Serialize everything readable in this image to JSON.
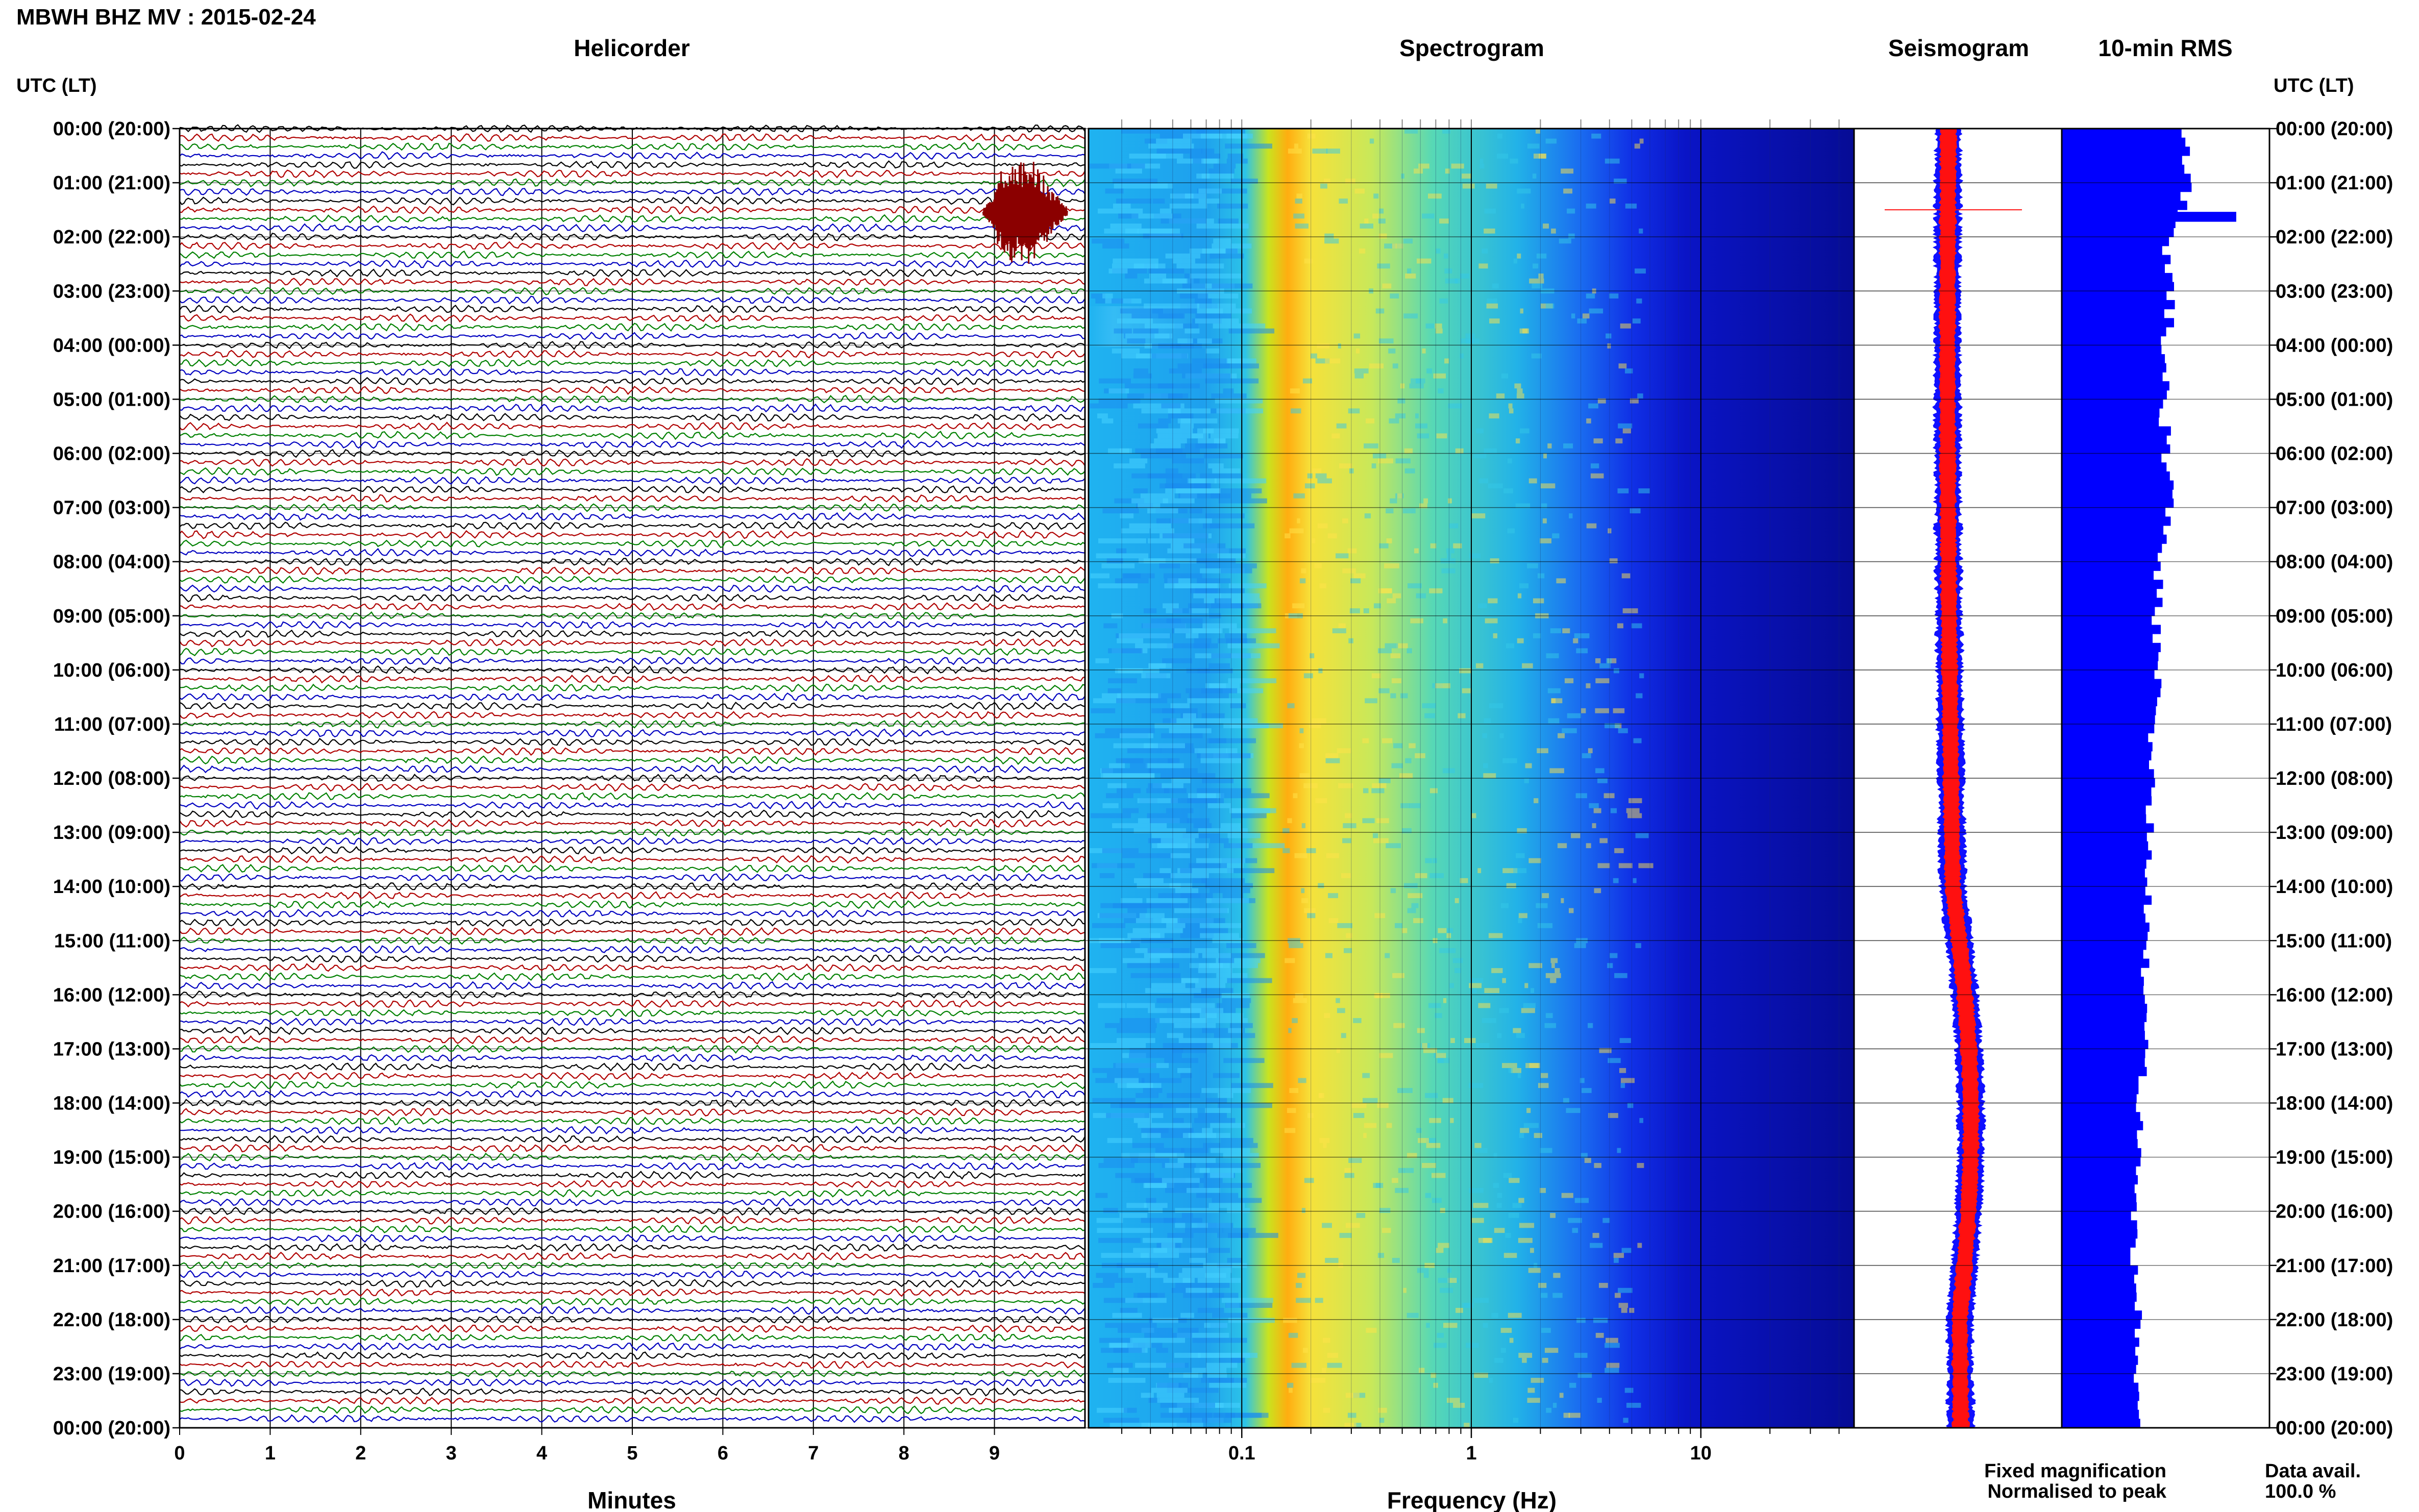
{
  "header": {
    "title": "MBWH BHZ MV : 2015-02-24"
  },
  "panels": {
    "helicorder": "Helicorder",
    "spectrogram": "Spectrogram",
    "seismogram": "Seismogram",
    "rms": "10-min RMS"
  },
  "axes": {
    "time_label": "UTC (LT)",
    "minutes_label": "Minutes",
    "frequency_label": "Frequency (Hz)"
  },
  "legend": {
    "fixed": "Fixed magnification",
    "fixed_color": "#1010ff",
    "normalised": "Normalised to peak",
    "normalised_color": "#ff1010"
  },
  "data_avail": {
    "label": "Data avail.",
    "value": "100.0 %"
  },
  "chart_data": [
    {
      "type": "line",
      "panel": "helicorder",
      "xlabel": "Minutes",
      "xlim": [
        0,
        10
      ],
      "x_ticks": [
        "0",
        "1",
        "2",
        "3",
        "4",
        "5",
        "6",
        "7",
        "8",
        "9"
      ],
      "rows_per_hour": 6,
      "trace_colors": [
        "#000000",
        "#b00000",
        "#008000",
        "#0000c0"
      ],
      "time_ticks": [
        "00:00 (20:00)",
        "01:00 (21:00)",
        "02:00 (22:00)",
        "03:00 (23:00)",
        "04:00 (00:00)",
        "05:00 (01:00)",
        "06:00 (02:00)",
        "07:00 (03:00)",
        "08:00 (04:00)",
        "09:00 (05:00)",
        "10:00 (06:00)",
        "11:00 (07:00)",
        "12:00 (08:00)",
        "13:00 (09:00)",
        "14:00 (10:00)",
        "15:00 (11:00)",
        "16:00 (12:00)",
        "17:00 (13:00)",
        "18:00 (14:00)",
        "19:00 (15:00)",
        "20:00 (16:00)",
        "21:00 (17:00)",
        "22:00 (18:00)",
        "23:00 (19:00)",
        "00:00 (20:00)"
      ],
      "event": {
        "time_utc": "01:30",
        "minute": 9.1,
        "color": "#8b0000"
      }
    },
    {
      "type": "heatmap",
      "panel": "spectrogram",
      "xlabel": "Frequency (Hz)",
      "x_scale": "log",
      "xlim": [
        0.02,
        50
      ],
      "x_ticks": [
        "0.1",
        "1",
        "10"
      ],
      "peak_band_hz": [
        0.15,
        0.3
      ],
      "colormap": "jet"
    },
    {
      "type": "line",
      "panel": "seismogram",
      "series": [
        {
          "name": "Fixed magnification",
          "color": "#1010ff"
        },
        {
          "name": "Normalised to peak",
          "color": "#ff1010"
        }
      ]
    },
    {
      "type": "bar",
      "panel": "rms",
      "orientation": "horizontal",
      "title": "10-min RMS",
      "color": "#0000ff",
      "hours": [
        0,
        1,
        2,
        3,
        4,
        5,
        6,
        7,
        8,
        9,
        10,
        11,
        12,
        13,
        14,
        15,
        16,
        17,
        18,
        19,
        20,
        21,
        22,
        23
      ],
      "values": [
        0.58,
        0.62,
        0.5,
        0.53,
        0.5,
        0.49,
        0.51,
        0.52,
        0.47,
        0.46,
        0.46,
        0.44,
        0.43,
        0.42,
        0.41,
        0.4,
        0.4,
        0.4,
        0.38,
        0.38,
        0.35,
        0.35,
        0.37,
        0.36
      ],
      "spike": {
        "time_utc": "01:30",
        "value": 0.84
      }
    }
  ]
}
